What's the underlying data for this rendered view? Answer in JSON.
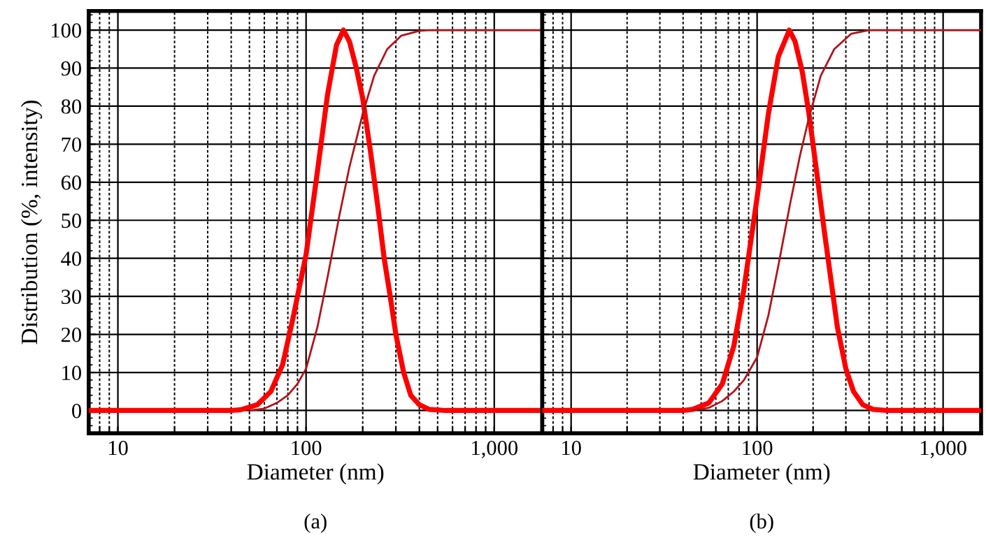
{
  "chart_data": [
    {
      "type": "line",
      "xlabel": "Diameter (nm)",
      "ylabel": "Distribution (%, intensity)",
      "log": "x",
      "grid": true,
      "legend": false,
      "annotations": [
        "(a)"
      ],
      "xlim": [
        7,
        1800
      ],
      "ylim": [
        -6,
        105
      ],
      "xticks": [
        {
          "value": 8,
          "label": null
        },
        {
          "value": 9,
          "label": null
        },
        {
          "value": 10,
          "label": "10"
        },
        {
          "value": 20,
          "label": null
        },
        {
          "value": 30,
          "label": null
        },
        {
          "value": 40,
          "label": null
        },
        {
          "value": 50,
          "label": null
        },
        {
          "value": 60,
          "label": null
        },
        {
          "value": 70,
          "label": null
        },
        {
          "value": 80,
          "label": null
        },
        {
          "value": 90,
          "label": null
        },
        {
          "value": 100,
          "label": "100"
        },
        {
          "value": 200,
          "label": null
        },
        {
          "value": 300,
          "label": null
        },
        {
          "value": 400,
          "label": null
        },
        {
          "value": 500,
          "label": null
        },
        {
          "value": 600,
          "label": null
        },
        {
          "value": 700,
          "label": null
        },
        {
          "value": 800,
          "label": null
        },
        {
          "value": 900,
          "label": null
        },
        {
          "value": 1000,
          "label": "1,000"
        }
      ],
      "yticks": [
        0,
        10,
        20,
        30,
        40,
        50,
        60,
        70,
        80,
        90,
        100
      ],
      "series": [
        {
          "color": "#ff0000",
          "x": [
            7,
            40,
            45,
            55,
            65,
            75,
            85,
            100,
            115,
            130,
            145,
            158,
            170,
            185,
            200,
            220,
            240,
            260,
            280,
            300,
            330,
            360,
            400,
            450,
            550,
            1800
          ],
          "values": [
            0,
            0,
            0.2,
            1.5,
            5,
            12,
            24,
            41,
            63,
            83,
            96,
            100,
            97,
            90,
            82,
            68,
            54,
            40,
            30,
            20,
            10,
            4,
            1.5,
            0.3,
            0,
            0
          ]
        },
        {
          "color": "#b0141a",
          "x": [
            50,
            60,
            70,
            80,
            90,
            100,
            115,
            130,
            150,
            170,
            200,
            230,
            270,
            320,
            400,
            450,
            1800
          ],
          "values": [
            0,
            0.5,
            2,
            4,
            7,
            11,
            22,
            35,
            51,
            64,
            78,
            88,
            95,
            98.5,
            99.8,
            100,
            100
          ]
        }
      ]
    },
    {
      "type": "line",
      "xlabel": "Diameter (nm)",
      "log": "x",
      "grid": true,
      "legend": false,
      "tick_labels": "x",
      "annotations": [
        "(b)"
      ],
      "xlim": [
        7,
        1600
      ],
      "ylim": [
        -6,
        105
      ],
      "xticks": [
        {
          "value": 8,
          "label": null
        },
        {
          "value": 9,
          "label": null
        },
        {
          "value": 10,
          "label": "10"
        },
        {
          "value": 20,
          "label": null
        },
        {
          "value": 30,
          "label": null
        },
        {
          "value": 40,
          "label": null
        },
        {
          "value": 50,
          "label": null
        },
        {
          "value": 60,
          "label": null
        },
        {
          "value": 70,
          "label": null
        },
        {
          "value": 80,
          "label": null
        },
        {
          "value": 90,
          "label": null
        },
        {
          "value": 100,
          "label": "100"
        },
        {
          "value": 200,
          "label": null
        },
        {
          "value": 300,
          "label": null
        },
        {
          "value": 400,
          "label": null
        },
        {
          "value": 500,
          "label": null
        },
        {
          "value": 600,
          "label": null
        },
        {
          "value": 700,
          "label": null
        },
        {
          "value": 800,
          "label": null
        },
        {
          "value": 900,
          "label": null
        },
        {
          "value": 1000,
          "label": "1,000"
        }
      ],
      "yticks": [
        0,
        10,
        20,
        30,
        40,
        50,
        60,
        70,
        80,
        90,
        100
      ],
      "series": [
        {
          "color": "#ff0000",
          "x": [
            7,
            40,
            45,
            55,
            65,
            75,
            85,
            100,
            115,
            130,
            149,
            160,
            175,
            190,
            210,
            230,
            250,
            270,
            300,
            330,
            370,
            420,
            500,
            1600
          ],
          "values": [
            0,
            0,
            0.3,
            2,
            7,
            17,
            32,
            56,
            78,
            93,
            100,
            97,
            89,
            78,
            62,
            47,
            34,
            22,
            11,
            5,
            1.5,
            0.3,
            0,
            0
          ]
        },
        {
          "color": "#b0141a",
          "x": [
            45,
            55,
            65,
            75,
            85,
            100,
            115,
            130,
            150,
            170,
            190,
            220,
            260,
            320,
            400,
            1600
          ],
          "values": [
            0,
            0.7,
            2.5,
            5,
            8,
            14,
            25,
            38,
            54,
            67,
            77,
            88,
            95,
            99,
            100,
            100
          ]
        }
      ]
    }
  ]
}
